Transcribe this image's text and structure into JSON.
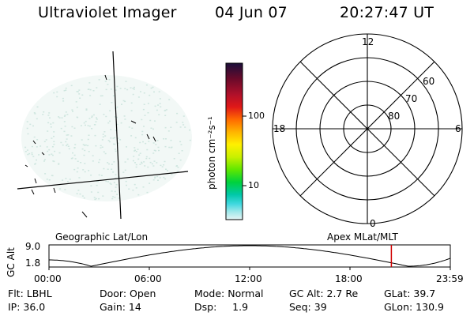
{
  "header": {
    "instrument": "Ultraviolet Imager",
    "date": "04 Jun 07",
    "time": "20:27:47 UT"
  },
  "colorbar": {
    "label": "photon cm⁻²s⁻¹",
    "ticks": [
      "100",
      "10"
    ],
    "scale": "log",
    "colors": [
      "#1a0f3a",
      "#6a0a2a",
      "#b0102a",
      "#e01818",
      "#ff6a00",
      "#ffb400",
      "#fff000",
      "#c8f000",
      "#60e800",
      "#00d23c",
      "#00c8a8",
      "#40d8e0",
      "#a0e8ea",
      "#e6f4f4"
    ]
  },
  "polar": {
    "clock_labels": {
      "top": "12",
      "left": "18",
      "right": "6",
      "bottom": "0"
    },
    "lat_labels": [
      "60",
      "70",
      "80"
    ]
  },
  "timeline": {
    "left_title": "Geographic Lat/Lon",
    "right_title": "Apex MLat/MLT",
    "y_axis_label": "GC Alt",
    "y_max": "9.0",
    "y_min": "1.8",
    "x_ticks": [
      "00:00",
      "06:00",
      "12:00",
      "18:00",
      "23:59"
    ],
    "marker_time": "20:27:47",
    "marker_color": "#d00000"
  },
  "footer": {
    "flt": "Flt: LBHL",
    "door": "Door: Open",
    "mode": "Mode: Normal",
    "gc_alt": "GC Alt: 2.7 Re",
    "glat": "GLat:  39.7",
    "ip": "IP: 36.0",
    "gain": "Gain: 14",
    "dsp": "Dsp:     1.9",
    "seq": "Seq: 39",
    "glon": "GLon: 130.9"
  }
}
